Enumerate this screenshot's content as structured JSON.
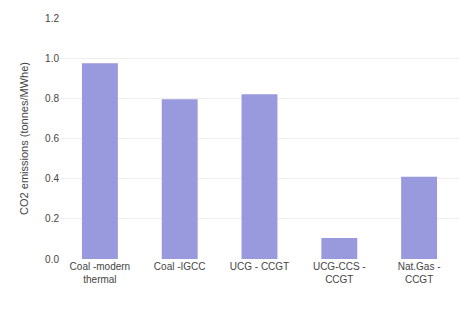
{
  "chart_data": {
    "type": "bar",
    "categories": [
      "Coal -modern\nthermal",
      "Coal -IGCC",
      "UCG - CCGT",
      "UCG-CCS -\nCCGT",
      "Nat.Gas -\nCCGT"
    ],
    "values": [
      0.975,
      0.795,
      0.82,
      0.105,
      0.41
    ],
    "color": "#9999dd",
    "ylabel": "CO2 emissions (tonnes/MWhe)",
    "ylim": [
      0,
      1.2
    ],
    "yticks": [
      {
        "value": 0,
        "label": "0.0"
      },
      0.2,
      0.4,
      0.6,
      0.8,
      {
        "value": 1.0,
        "label": "1.0"
      },
      1.2
    ],
    "grid": true
  }
}
